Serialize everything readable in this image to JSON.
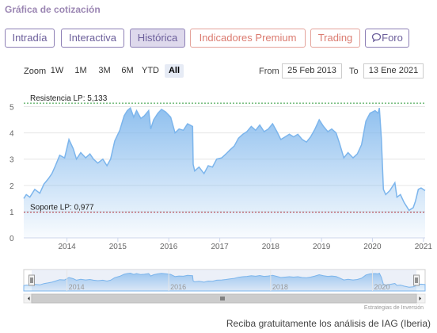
{
  "page": {
    "section_title": "Gráfica de cotización",
    "footer": "Reciba gratuitamente los análisis de IAG (Iberia)"
  },
  "tabs": [
    {
      "label": "Intradía",
      "style": "purple",
      "active": false
    },
    {
      "label": "Interactiva",
      "style": "purple",
      "active": false
    },
    {
      "label": "Histórica",
      "style": "purple",
      "active": true
    },
    {
      "label": "Indicadores Premium",
      "style": "red",
      "active": false
    },
    {
      "label": "Trading",
      "style": "red",
      "active": false
    },
    {
      "label": "Foro",
      "style": "purple",
      "active": false,
      "icon": "speech-bubble-icon"
    }
  ],
  "zoom": {
    "label": "Zoom",
    "options": [
      "1W",
      "1M",
      "3M",
      "6M",
      "YTD",
      "All"
    ],
    "selected": "All"
  },
  "range": {
    "from_label": "From",
    "from_value": "25 Feb 2013",
    "to_label": "To",
    "to_value": "13 Ene 2021"
  },
  "colors": {
    "tab_purple": "#8d7fb5",
    "tab_red": "#db7b70",
    "line": "#7cb5ec",
    "resistance": "#2f9b3a",
    "support": "#b0303a"
  },
  "chart_data": {
    "type": "area",
    "x_start": "2013-02-25",
    "x_end": "2021-01-13",
    "ylim": [
      0,
      5.5
    ],
    "yticks": [
      "0",
      "1",
      "2",
      "3",
      "4",
      "5"
    ],
    "xticks": [
      "2014",
      "2015",
      "2016",
      "2017",
      "2018",
      "2019",
      "2020",
      "2021"
    ],
    "points": [
      [
        "2013-02-25",
        1.5
      ],
      [
        "2013-03-15",
        1.65
      ],
      [
        "2013-04-10",
        1.55
      ],
      [
        "2013-05-15",
        1.85
      ],
      [
        "2013-06-20",
        1.7
      ],
      [
        "2013-07-20",
        2.05
      ],
      [
        "2013-08-20",
        2.25
      ],
      [
        "2013-09-15",
        2.45
      ],
      [
        "2013-10-10",
        2.75
      ],
      [
        "2013-11-10",
        3.15
      ],
      [
        "2013-12-15",
        3.05
      ],
      [
        "2014-01-15",
        3.75
      ],
      [
        "2014-02-15",
        3.4
      ],
      [
        "2014-03-10",
        3.0
      ],
      [
        "2014-04-10",
        3.25
      ],
      [
        "2014-05-15",
        3.05
      ],
      [
        "2014-06-15",
        3.2
      ],
      [
        "2014-07-10",
        3.0
      ],
      [
        "2014-08-10",
        2.85
      ],
      [
        "2014-09-15",
        3.0
      ],
      [
        "2014-10-15",
        2.75
      ],
      [
        "2014-11-10",
        3.0
      ],
      [
        "2014-12-10",
        3.7
      ],
      [
        "2015-01-15",
        4.1
      ],
      [
        "2015-02-15",
        4.65
      ],
      [
        "2015-03-10",
        4.85
      ],
      [
        "2015-04-01",
        4.95
      ],
      [
        "2015-04-25",
        4.6
      ],
      [
        "2015-05-15",
        4.85
      ],
      [
        "2015-06-15",
        4.55
      ],
      [
        "2015-07-10",
        4.65
      ],
      [
        "2015-08-10",
        4.85
      ],
      [
        "2015-08-25",
        4.15
      ],
      [
        "2015-09-15",
        4.5
      ],
      [
        "2015-10-15",
        4.75
      ],
      [
        "2015-11-10",
        4.9
      ],
      [
        "2015-12-10",
        4.8
      ],
      [
        "2016-01-15",
        4.6
      ],
      [
        "2016-02-15",
        4.0
      ],
      [
        "2016-03-15",
        4.15
      ],
      [
        "2016-04-15",
        4.1
      ],
      [
        "2016-05-15",
        4.35
      ],
      [
        "2016-06-20",
        4.25
      ],
      [
        "2016-06-24",
        2.8
      ],
      [
        "2016-07-05",
        2.55
      ],
      [
        "2016-08-05",
        2.7
      ],
      [
        "2016-09-10",
        2.45
      ],
      [
        "2016-10-10",
        2.75
      ],
      [
        "2016-11-10",
        2.7
      ],
      [
        "2016-12-10",
        3.0
      ],
      [
        "2017-01-15",
        3.05
      ],
      [
        "2017-02-15",
        3.2
      ],
      [
        "2017-03-15",
        3.35
      ],
      [
        "2017-04-15",
        3.5
      ],
      [
        "2017-05-15",
        3.8
      ],
      [
        "2017-06-15",
        3.95
      ],
      [
        "2017-07-15",
        4.05
      ],
      [
        "2017-08-15",
        4.25
      ],
      [
        "2017-09-15",
        4.1
      ],
      [
        "2017-10-15",
        4.3
      ],
      [
        "2017-11-15",
        4.05
      ],
      [
        "2017-12-15",
        4.15
      ],
      [
        "2018-01-15",
        4.35
      ],
      [
        "2018-02-15",
        4.05
      ],
      [
        "2018-03-15",
        3.75
      ],
      [
        "2018-04-15",
        3.85
      ],
      [
        "2018-05-15",
        3.95
      ],
      [
        "2018-06-15",
        3.85
      ],
      [
        "2018-07-15",
        3.95
      ],
      [
        "2018-08-15",
        3.75
      ],
      [
        "2018-09-15",
        3.65
      ],
      [
        "2018-10-15",
        3.85
      ],
      [
        "2018-11-15",
        4.15
      ],
      [
        "2018-12-15",
        4.5
      ],
      [
        "2019-01-15",
        4.25
      ],
      [
        "2019-02-15",
        4.05
      ],
      [
        "2019-03-15",
        4.15
      ],
      [
        "2019-04-15",
        4.0
      ],
      [
        "2019-05-10",
        3.6
      ],
      [
        "2019-06-10",
        3.05
      ],
      [
        "2019-07-10",
        3.25
      ],
      [
        "2019-08-15",
        3.05
      ],
      [
        "2019-09-15",
        3.2
      ],
      [
        "2019-10-15",
        3.55
      ],
      [
        "2019-11-15",
        4.45
      ],
      [
        "2019-12-15",
        4.75
      ],
      [
        "2020-01-20",
        4.85
      ],
      [
        "2020-02-10",
        4.75
      ],
      [
        "2020-02-20",
        4.95
      ],
      [
        "2020-03-05",
        3.8
      ],
      [
        "2020-03-20",
        1.85
      ],
      [
        "2020-04-05",
        1.65
      ],
      [
        "2020-05-05",
        1.8
      ],
      [
        "2020-06-10",
        2.1
      ],
      [
        "2020-06-25",
        1.55
      ],
      [
        "2020-07-20",
        1.65
      ],
      [
        "2020-08-15",
        1.35
      ],
      [
        "2020-09-20",
        1.05
      ],
      [
        "2020-10-20",
        1.15
      ],
      [
        "2020-11-05",
        1.4
      ],
      [
        "2020-11-25",
        1.85
      ],
      [
        "2020-12-15",
        1.9
      ],
      [
        "2021-01-13",
        1.8
      ]
    ],
    "annotations": [
      {
        "label": "Resistencia LP: 5,133",
        "value": 5.133,
        "color_key": "resistance"
      },
      {
        "label": "Soporte LP: 0,977",
        "value": 0.977,
        "color_key": "support"
      }
    ],
    "navigator_xticks": [
      "2014",
      "2016",
      "2018",
      "2020"
    ],
    "credits": "Estrategias de Inversión",
    "grid": true,
    "legend": "none"
  }
}
